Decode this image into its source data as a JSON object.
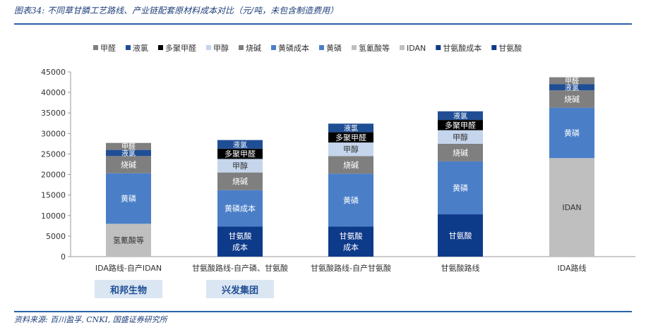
{
  "header": {
    "title": "图表34: 不同草甘膦工艺路线、产业链配套原材料成本对比（元/吨，未包含制造费用）"
  },
  "footer": {
    "source": "资料来源: 百川盈孚, CNKI, 国盛证券研究所"
  },
  "tags": [
    "和邦生物",
    "兴发集团"
  ],
  "colors": {
    "甲醛": "#7f7f7f",
    "液氯": "#1f4e94",
    "多聚甲醛": "#000000",
    "甲醇": "#c5d5ec",
    "烧碱": "#7f7f7f",
    "黄磷成本": "#4a7fc8",
    "黄磷": "#4a7fc8",
    "氢氰酸等": "#bfbfbf",
    "IDAN": "#bfbfbf",
    "甘氨酸成本": "#0e3a8a",
    "甘氨酸": "#0e3a8a"
  },
  "chart_data": {
    "type": "bar",
    "stacked": true,
    "categories": [
      "IDA路线-自产IDAN",
      "甘氨酸路线-自产磷、甘氨酸",
      "甘氨酸路线-自产甘氨酸",
      "甘氨酸路线",
      "IDA路线"
    ],
    "legend": [
      "甲醛",
      "液氯",
      "多聚甲醛",
      "甲醇",
      "烧碱",
      "黄磷成本",
      "黄磷",
      "氢氰酸等",
      "IDAN",
      "甘氨酸成本",
      "甘氨酸"
    ],
    "legend_position": "top",
    "ylim": [
      0,
      45000
    ],
    "yticks": [
      0,
      5000,
      10000,
      15000,
      20000,
      25000,
      30000,
      35000,
      40000,
      45000
    ],
    "grid": false,
    "stacks": [
      [
        {
          "name": "氢氰酸等",
          "value": 8000,
          "label": "氢氰酸等"
        },
        {
          "name": "黄磷",
          "value": 12300,
          "label": "黄磷"
        },
        {
          "name": "烧碱",
          "value": 4200,
          "label": "烧碱"
        },
        {
          "name": "液氯",
          "value": 1500,
          "label": "液氯"
        },
        {
          "name": "甲醛",
          "value": 1700,
          "label": "甲醛"
        }
      ],
      [
        {
          "name": "甘氨酸成本",
          "value": 7300,
          "label": "甘氨酸成本"
        },
        {
          "name": "黄磷成本",
          "value": 8900,
          "label": "黄磷成本"
        },
        {
          "name": "烧碱",
          "value": 4300,
          "label": "烧碱"
        },
        {
          "name": "甲醇",
          "value": 3300,
          "label": "甲醇"
        },
        {
          "name": "多聚甲醛",
          "value": 2500,
          "label": "多聚甲醛"
        },
        {
          "name": "液氯",
          "value": 2100,
          "label": "液氯"
        }
      ],
      [
        {
          "name": "甘氨酸成本",
          "value": 7300,
          "label": "甘氨酸成本"
        },
        {
          "name": "黄磷",
          "value": 12900,
          "label": "黄磷"
        },
        {
          "name": "烧碱",
          "value": 4300,
          "label": "烧碱"
        },
        {
          "name": "甲醇",
          "value": 3300,
          "label": "甲醇"
        },
        {
          "name": "多聚甲醛",
          "value": 2500,
          "label": "多聚甲醛"
        },
        {
          "name": "液氯",
          "value": 2100,
          "label": "液氯"
        }
      ],
      [
        {
          "name": "甘氨酸",
          "value": 10300,
          "label": "甘氨酸"
        },
        {
          "name": "黄磷",
          "value": 12900,
          "label": "黄磷"
        },
        {
          "name": "烧碱",
          "value": 4300,
          "label": "烧碱"
        },
        {
          "name": "甲醇",
          "value": 3300,
          "label": "甲醇"
        },
        {
          "name": "多聚甲醛",
          "value": 2500,
          "label": "多聚甲醛"
        },
        {
          "name": "液氯",
          "value": 2100,
          "label": "液氯"
        }
      ],
      [
        {
          "name": "IDAN",
          "value": 24000,
          "label": "IDAN"
        },
        {
          "name": "黄磷",
          "value": 12300,
          "label": "黄磷"
        },
        {
          "name": "烧碱",
          "value": 4200,
          "label": "烧碱"
        },
        {
          "name": "液氯",
          "value": 1500,
          "label": "液氯"
        },
        {
          "name": "甲醛",
          "value": 1700,
          "label": "甲醛"
        }
      ]
    ]
  }
}
